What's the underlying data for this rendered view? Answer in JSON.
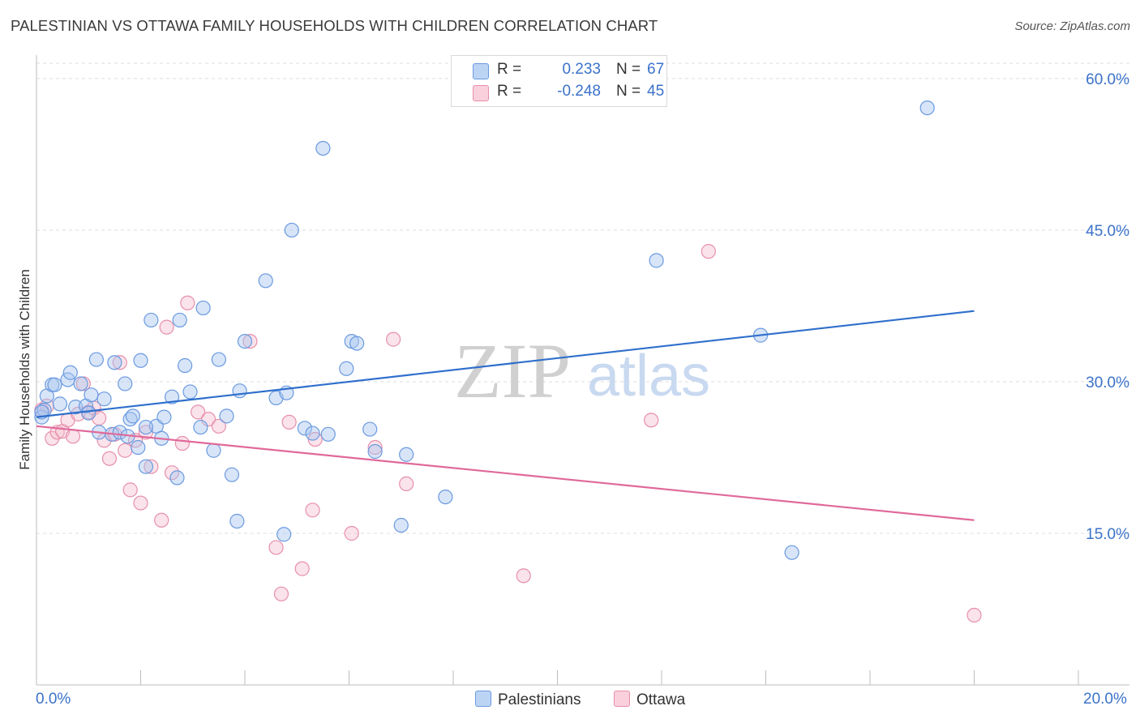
{
  "title": "PALESTINIAN VS OTTAWA FAMILY HOUSEHOLDS WITH CHILDREN CORRELATION CHART",
  "source": "Source: ZipAtlas.com",
  "watermark": {
    "zip": "ZIP",
    "atlas": "atlas"
  },
  "colors": {
    "blue_fill": "#a9c6ef",
    "blue_stroke": "#6a9ae0",
    "blue_line": "#2f6fcc",
    "pink_fill": "#f5c0d0",
    "pink_stroke": "#e78fab",
    "pink_line": "#e0699a",
    "axis_text": "#3b72c9",
    "grid": "#dcdcdc"
  },
  "legend": {
    "rows": [
      {
        "r_label": "R =",
        "r_value": "0.233",
        "n_label": "N =",
        "n_value": "67"
      },
      {
        "r_label": "R =",
        "r_value": "-0.248",
        "n_label": "N =",
        "n_value": "45"
      }
    ]
  },
  "bottom_legend": {
    "series1": "Palestinians",
    "series2": "Ottawa"
  },
  "x_axis_labels": {
    "left": "0.0%",
    "right": "20.0%"
  },
  "chart_data": {
    "type": "scatter",
    "title": "PALESTINIAN VS OTTAWA FAMILY HOUSEHOLDS WITH CHILDREN CORRELATION CHART",
    "xlabel": "",
    "ylabel": "Family Households with Children",
    "xlim": [
      0,
      20
    ],
    "ylim": [
      0,
      62
    ],
    "y_ticks": [
      15,
      30,
      45,
      60
    ],
    "y_tick_labels": [
      "15.0%",
      "30.0%",
      "45.0%",
      "60.0%"
    ],
    "grid": true,
    "series": [
      {
        "name": "Palestinians",
        "r": 0.233,
        "n": 67,
        "trend": {
          "x": [
            0,
            18
          ],
          "y": [
            26.5,
            37.0
          ]
        },
        "points": [
          [
            0.1,
            26.5
          ],
          [
            0.15,
            27.2
          ],
          [
            0.2,
            28.6
          ],
          [
            0.3,
            29.7
          ],
          [
            0.35,
            29.7
          ],
          [
            0.45,
            27.8
          ],
          [
            0.6,
            30.2
          ],
          [
            0.65,
            30.9
          ],
          [
            0.75,
            27.5
          ],
          [
            0.85,
            29.8
          ],
          [
            0.95,
            27.6
          ],
          [
            1.0,
            26.9
          ],
          [
            1.05,
            28.7
          ],
          [
            1.15,
            32.2
          ],
          [
            1.2,
            25.0
          ],
          [
            1.3,
            28.3
          ],
          [
            1.45,
            24.8
          ],
          [
            1.5,
            31.9
          ],
          [
            1.6,
            25.0
          ],
          [
            1.7,
            29.8
          ],
          [
            1.75,
            24.6
          ],
          [
            1.8,
            26.3
          ],
          [
            1.85,
            26.6
          ],
          [
            1.95,
            23.5
          ],
          [
            2.0,
            32.1
          ],
          [
            2.1,
            21.6
          ],
          [
            2.2,
            36.1
          ],
          [
            2.3,
            25.6
          ],
          [
            2.4,
            24.4
          ],
          [
            2.45,
            26.5
          ],
          [
            2.6,
            28.5
          ],
          [
            2.7,
            20.5
          ],
          [
            2.75,
            36.1
          ],
          [
            2.85,
            31.6
          ],
          [
            2.95,
            29.0
          ],
          [
            3.15,
            25.5
          ],
          [
            3.2,
            37.3
          ],
          [
            3.4,
            23.2
          ],
          [
            3.5,
            32.2
          ],
          [
            3.65,
            26.6
          ],
          [
            3.75,
            20.8
          ],
          [
            3.85,
            16.2
          ],
          [
            3.9,
            29.1
          ],
          [
            4.0,
            34.0
          ],
          [
            4.4,
            40.0
          ],
          [
            4.6,
            28.4
          ],
          [
            4.75,
            14.9
          ],
          [
            4.8,
            28.9
          ],
          [
            4.9,
            45.0
          ],
          [
            5.15,
            25.4
          ],
          [
            5.3,
            24.9
          ],
          [
            5.5,
            53.1
          ],
          [
            5.6,
            24.8
          ],
          [
            5.95,
            31.3
          ],
          [
            6.05,
            34.0
          ],
          [
            6.15,
            33.8
          ],
          [
            6.4,
            25.3
          ],
          [
            6.5,
            23.1
          ],
          [
            7.0,
            15.8
          ],
          [
            7.1,
            22.8
          ],
          [
            7.85,
            18.6
          ],
          [
            11.9,
            42.0
          ],
          [
            13.9,
            34.6
          ],
          [
            14.5,
            13.1
          ],
          [
            17.1,
            57.1
          ],
          [
            0.1,
            27.0
          ],
          [
            2.1,
            25.5
          ]
        ]
      },
      {
        "name": "Ottawa",
        "r": -0.248,
        "n": 45,
        "trend": {
          "x": [
            0,
            18
          ],
          "y": [
            25.6,
            16.3
          ]
        },
        "points": [
          [
            0.1,
            27.2
          ],
          [
            0.2,
            27.6
          ],
          [
            0.3,
            24.4
          ],
          [
            0.4,
            25.0
          ],
          [
            0.5,
            25.1
          ],
          [
            0.6,
            26.2
          ],
          [
            0.7,
            24.6
          ],
          [
            0.8,
            26.8
          ],
          [
            0.9,
            29.8
          ],
          [
            1.0,
            27.0
          ],
          [
            1.1,
            27.4
          ],
          [
            1.2,
            26.4
          ],
          [
            1.3,
            24.2
          ],
          [
            1.4,
            22.4
          ],
          [
            1.5,
            24.8
          ],
          [
            1.6,
            31.9
          ],
          [
            1.7,
            23.2
          ],
          [
            1.8,
            19.3
          ],
          [
            1.9,
            24.2
          ],
          [
            2.0,
            18.0
          ],
          [
            2.1,
            25.0
          ],
          [
            2.2,
            21.6
          ],
          [
            2.4,
            16.3
          ],
          [
            2.5,
            35.4
          ],
          [
            2.6,
            21.0
          ],
          [
            2.8,
            23.9
          ],
          [
            2.9,
            37.8
          ],
          [
            3.1,
            27.0
          ],
          [
            3.3,
            26.3
          ],
          [
            3.5,
            25.6
          ],
          [
            4.1,
            34.0
          ],
          [
            4.6,
            13.6
          ],
          [
            4.7,
            9.0
          ],
          [
            4.85,
            26.0
          ],
          [
            5.1,
            11.5
          ],
          [
            5.3,
            17.3
          ],
          [
            5.35,
            24.3
          ],
          [
            6.05,
            15.0
          ],
          [
            6.5,
            23.5
          ],
          [
            6.85,
            34.2
          ],
          [
            7.1,
            19.9
          ],
          [
            9.35,
            10.8
          ],
          [
            11.8,
            26.2
          ],
          [
            12.9,
            42.9
          ],
          [
            18.0,
            6.9
          ]
        ]
      }
    ]
  }
}
